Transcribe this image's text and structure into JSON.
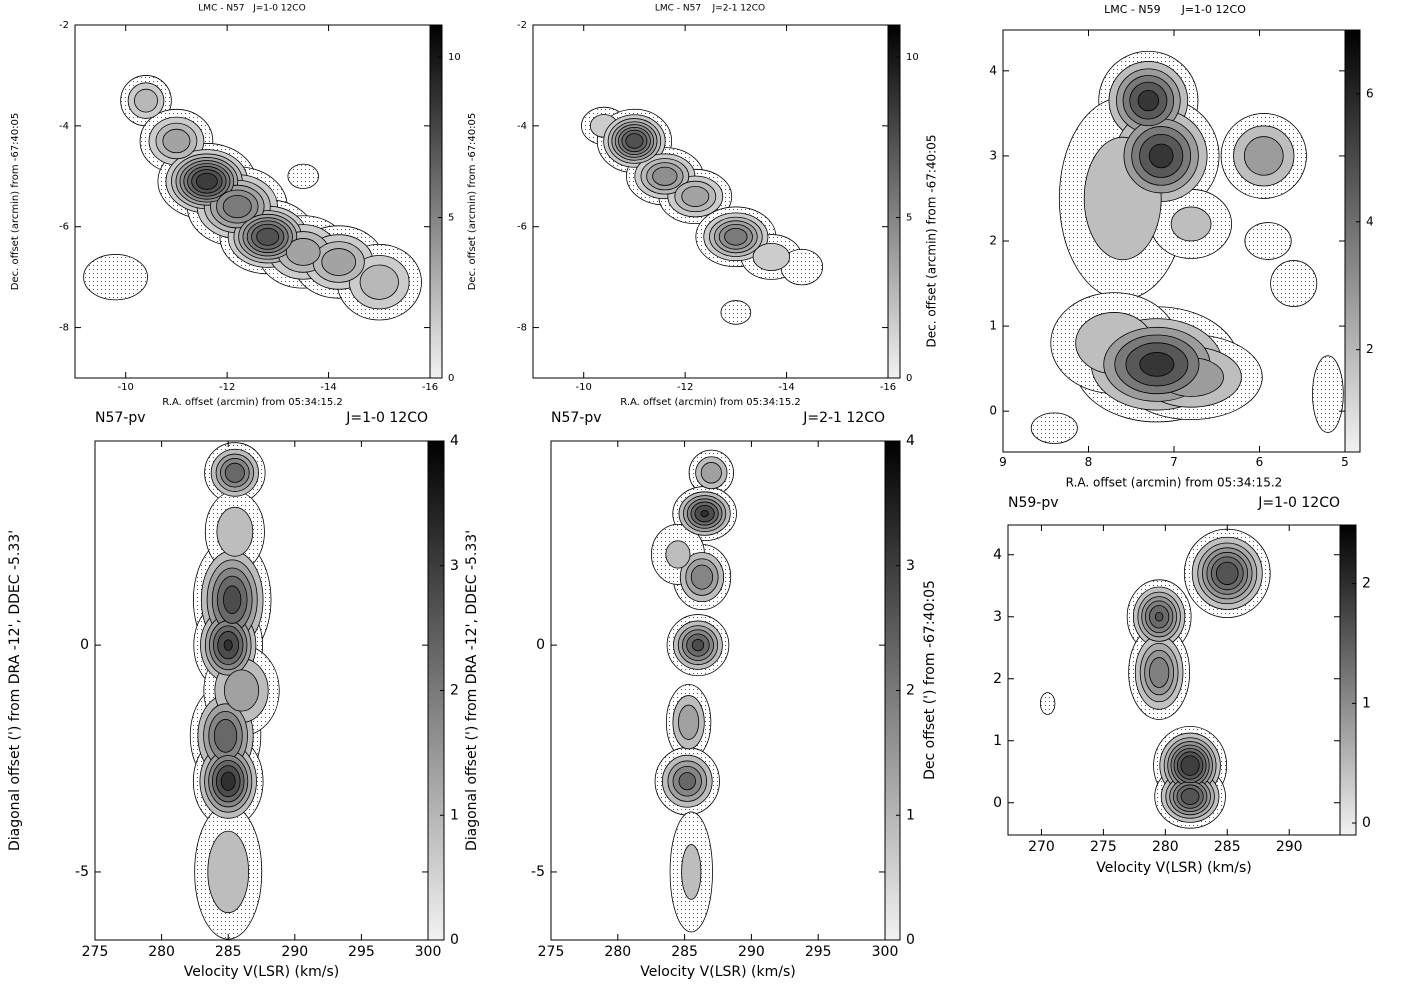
{
  "chart_data": [
    {
      "type": "contour",
      "title": "LMC - N57   J=1-0 12CO",
      "xlabel": "R.A. offset (arcmin) from 05:34:15.2",
      "ylabel": "Dec. offset (arcmin) from -67:40:05",
      "xlim": [
        -9,
        -16
      ],
      "ylim": [
        -9,
        -2
      ],
      "xticks": [
        -10,
        -12,
        -14,
        -16
      ],
      "yticks": [
        -8,
        -6,
        -4,
        -2
      ],
      "clim": [
        0,
        11
      ],
      "cticks": [
        0,
        5,
        10
      ],
      "levels": [
        1,
        2,
        3,
        4,
        5,
        6,
        7,
        8,
        9,
        10
      ],
      "peaks": {
        "x": [
          -10.4,
          -11.0,
          -11.6,
          -12.2,
          -12.8,
          -13.5,
          -14.2,
          -15.0,
          -9.8,
          -13.5
        ],
        "y": [
          -3.5,
          -4.3,
          -5.1,
          -5.6,
          -6.2,
          -6.5,
          -6.7,
          -7.1,
          -7.0,
          -5.0
        ],
        "sx": [
          0.3,
          0.4,
          0.45,
          0.5,
          0.45,
          0.5,
          0.5,
          0.5,
          0.7,
          0.5
        ],
        "sy": [
          0.3,
          0.35,
          0.35,
          0.4,
          0.35,
          0.4,
          0.4,
          0.45,
          0.5,
          0.4
        ],
        "amp": [
          4,
          5,
          10,
          7,
          9,
          5,
          5,
          4,
          1.5,
          1.2
        ]
      }
    },
    {
      "type": "contour",
      "title": "LMC - N57    J=2-1 12CO",
      "ylabel": "Dec. offset (arcmin) from -67:40:05",
      "xlabel": "R.A. offset (arcmin) from 05:34:15.2",
      "xlim": [
        -9,
        -16
      ],
      "ylim": [
        -9,
        -2
      ],
      "xticks": [
        -10,
        -12,
        -14,
        -16
      ],
      "yticks": [
        -8,
        -6,
        -4,
        -2
      ],
      "clim": [
        0,
        11
      ],
      "cticks": [
        0,
        5,
        10
      ],
      "levels": [
        1,
        2,
        3,
        4,
        5,
        6,
        7,
        8
      ],
      "peaks": {
        "x": [
          -10.4,
          -11.0,
          -11.6,
          -12.2,
          -13.0,
          -13.7,
          -14.3,
          -13.0
        ],
        "y": [
          -4.0,
          -4.3,
          -5.0,
          -5.4,
          -6.2,
          -6.6,
          -6.8,
          -7.7
        ],
        "sx": [
          0.3,
          0.35,
          0.4,
          0.4,
          0.4,
          0.4,
          0.35,
          0.25
        ],
        "sy": [
          0.25,
          0.3,
          0.3,
          0.3,
          0.3,
          0.3,
          0.3,
          0.2
        ],
        "amp": [
          3,
          9,
          6,
          5,
          7,
          3,
          2,
          2
        ]
      }
    },
    {
      "type": "contour",
      "title": "LMC - N59      J=1-0 12CO",
      "xlabel": "R.A. offset (arcmin) from 05:34:15.2",
      "ylabel": "Dec. offset (arcmin) from -67:40:05",
      "xlim": [
        9,
        5
      ],
      "ylim": [
        -0.48,
        4.48
      ],
      "xticks": [
        9,
        8,
        7,
        6,
        5
      ],
      "yticks": [
        0,
        1,
        2,
        3,
        4
      ],
      "clim": [
        0.4,
        7
      ],
      "cticks": [
        2,
        4,
        6
      ],
      "levels": [
        1,
        2,
        3,
        4,
        5,
        6
      ],
      "peaks": {
        "x": [
          7.3,
          7.15,
          7.6,
          6.8,
          5.95,
          7.2,
          6.8,
          7.7,
          5.9,
          5.6,
          8.4,
          5.2
        ],
        "y": [
          3.65,
          3.0,
          2.5,
          2.2,
          3.0,
          0.55,
          0.4,
          0.8,
          2.0,
          1.5,
          -0.2,
          0.2
        ],
        "sx": [
          0.3,
          0.35,
          0.5,
          0.35,
          0.3,
          0.5,
          0.5,
          0.5,
          0.25,
          0.3,
          0.3,
          0.2
        ],
        "sy": [
          0.3,
          0.35,
          0.8,
          0.3,
          0.3,
          0.35,
          0.3,
          0.4,
          0.2,
          0.3,
          0.2,
          0.5
        ],
        "amp": [
          6.5,
          6.5,
          3,
          2.5,
          4,
          6.5,
          4,
          3,
          1.8,
          1.5,
          1.5,
          1.5
        ]
      }
    },
    {
      "type": "contour",
      "title": "N57-pv",
      "subtitle": "J=1-0 12CO",
      "xlabel": "Velocity V(LSR) (km/s)",
      "ylabel": "Diagonal offset (') from DRA -12', DDEC -5.33'",
      "xlim": [
        275,
        300
      ],
      "ylim": [
        -6.5,
        4.5
      ],
      "xticks": [
        275,
        280,
        285,
        290,
        295,
        300
      ],
      "yticks": [
        -5,
        0
      ],
      "clim": [
        0,
        4
      ],
      "cticks": [
        0,
        1,
        2,
        3,
        4
      ],
      "levels": [
        0.5,
        1,
        1.5,
        2,
        2.5,
        3,
        3.5
      ],
      "peaks": {
        "x": [
          285.5,
          285.3,
          285,
          284.8,
          285,
          285,
          285.5,
          286
        ],
        "y": [
          3.8,
          1,
          0,
          -2,
          -3,
          -5,
          2.5,
          -1
        ],
        "sx": [
          1.2,
          1.5,
          1.3,
          1.4,
          1.3,
          1.7,
          1.5,
          1.7
        ],
        "sy": [
          0.35,
          0.7,
          0.5,
          0.6,
          0.5,
          1.0,
          0.6,
          0.6
        ],
        "amp": [
          3,
          3.3,
          3.6,
          3,
          3.8,
          1.5,
          1.5,
          2
        ]
      }
    },
    {
      "type": "contour",
      "title": "N57-pv",
      "subtitle": "J=2-1 12CO",
      "xlabel": "Velocity V(LSR) (km/s)",
      "ylabel": "Diagonal offset (') from DRA -12', DDEC -5.33'",
      "xlim": [
        275,
        300
      ],
      "ylim": [
        -6.5,
        4.5
      ],
      "xticks": [
        275,
        280,
        285,
        290,
        295,
        300
      ],
      "yticks": [
        -5,
        0
      ],
      "clim": [
        0,
        4
      ],
      "cticks": [
        0,
        1,
        2,
        3,
        4
      ],
      "levels": [
        0.5,
        1,
        1.5,
        2,
        2.5,
        3,
        3.5
      ],
      "peaks": {
        "x": [
          287,
          286.5,
          286.3,
          286,
          285.3,
          285.2,
          285.5,
          284.5
        ],
        "y": [
          3.8,
          2.9,
          1.5,
          0,
          -1.7,
          -3,
          -5,
          2
        ],
        "sx": [
          1,
          1.2,
          1.2,
          1.2,
          1,
          1.3,
          1.2,
          1.5
        ],
        "sy": [
          0.3,
          0.3,
          0.4,
          0.35,
          0.5,
          0.4,
          1.0,
          0.5
        ],
        "amp": [
          2,
          3.6,
          2.5,
          3.2,
          2,
          2.8,
          1.2,
          1.2
        ]
      }
    },
    {
      "type": "contour",
      "title": "N59-pv",
      "subtitle": "J=1-0 12CO",
      "xlabel": "Velocity V(LSR) (km/s)",
      "ylabel": "Dec offset (') from -67:40:05",
      "xlim": [
        267.3,
        294.1
      ],
      "ylim": [
        -0.52,
        4.48
      ],
      "xticks": [
        270,
        275,
        280,
        285,
        290
      ],
      "yticks": [
        0,
        1,
        2,
        3,
        4
      ],
      "clim": [
        -0.1,
        2.49
      ],
      "cticks": [
        0,
        1,
        2
      ],
      "levels": [
        0.25,
        0.5,
        0.75,
        1,
        1.25,
        1.5,
        1.75,
        2
      ],
      "peaks": {
        "x": [
          285,
          279.5,
          279.5,
          282,
          282,
          270.5
        ],
        "y": [
          3.7,
          3,
          2.1,
          0.6,
          0.1,
          1.6
        ],
        "sx": [
          1.7,
          1.3,
          1.3,
          1.4,
          1.4,
          0.5
        ],
        "sy": [
          0.35,
          0.3,
          0.4,
          0.3,
          0.25,
          0.15
        ],
        "amp": [
          2,
          1.8,
          1.5,
          2.3,
          2,
          0.5
        ]
      }
    }
  ]
}
